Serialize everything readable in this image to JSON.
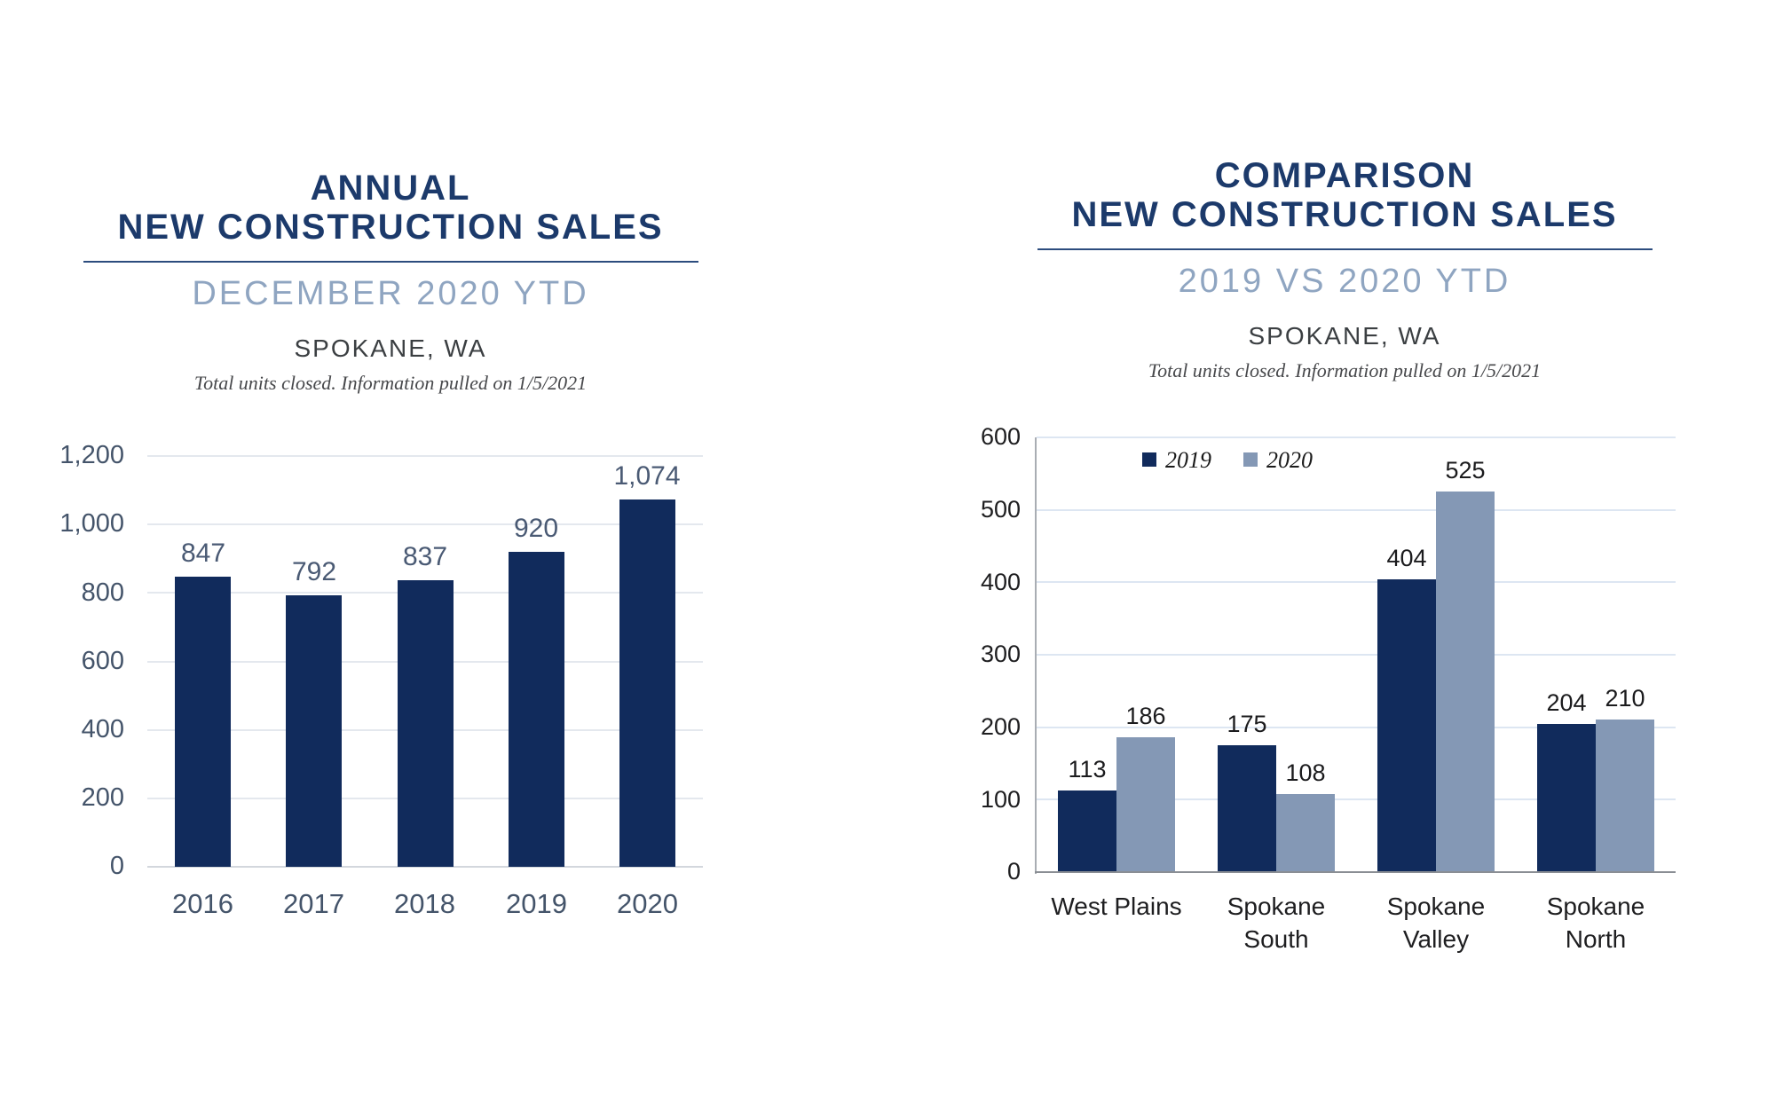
{
  "palette": {
    "navy_bar": "#112b5c",
    "steel_blue_bar": "#8498b5",
    "title_navy": "#1c3a6b",
    "subtitle_blue": "#8fa5c1",
    "left_axis_label": "#44546a"
  },
  "chart_data": [
    {
      "type": "bar",
      "title_line1": "ANNUAL",
      "title_line2": "NEW CONSTRUCTION SALES",
      "subtitle": "DECEMBER 2020 YTD",
      "location": "SPOKANE, WA",
      "note": "Total units closed.  Information pulled on 1/5/2021",
      "categories": [
        "2016",
        "2017",
        "2018",
        "2019",
        "2020"
      ],
      "values": [
        847,
        792,
        837,
        920,
        1074
      ],
      "data_labels": [
        "847",
        "792",
        "837",
        "920",
        "1,074"
      ],
      "ylim": [
        0,
        1200
      ],
      "ytick_step": 200,
      "ytick_labels": [
        "0",
        "200",
        "400",
        "600",
        "800",
        "1,000",
        "1,200"
      ],
      "grid": true,
      "legend": "none",
      "bar_color": "#112b5c"
    },
    {
      "type": "bar",
      "title_line1": "COMPARISON",
      "title_line2": "NEW CONSTRUCTION SALES",
      "subtitle": "2019 VS 2020 YTD",
      "location": "SPOKANE, WA",
      "note": "Total units closed.  Information pulled on 1/5/2021",
      "categories": [
        "West Plains",
        "Spokane\nSouth",
        "Spokane\nValley",
        "Spokane\nNorth"
      ],
      "series": [
        {
          "name": "2019",
          "values": [
            113,
            175,
            404,
            204
          ],
          "color": "#112b5c"
        },
        {
          "name": "2020",
          "values": [
            186,
            108,
            525,
            210
          ],
          "color": "#8498b5"
        }
      ],
      "ylim": [
        0,
        600
      ],
      "ytick_step": 100,
      "ytick_labels": [
        "0",
        "100",
        "200",
        "300",
        "400",
        "500",
        "600"
      ],
      "grid": true,
      "legend": "top-left-inside"
    }
  ]
}
